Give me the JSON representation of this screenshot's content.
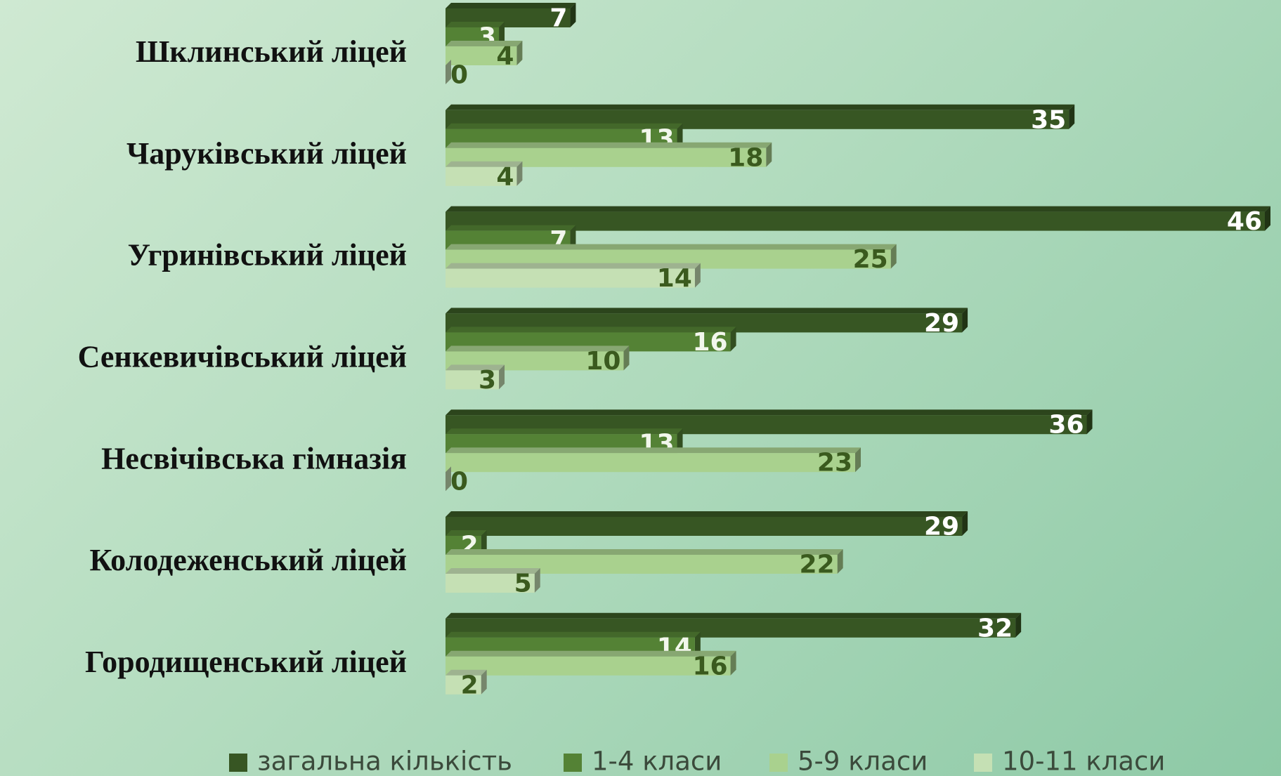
{
  "chart_data": {
    "type": "bar",
    "orientation": "horizontal",
    "categories": [
      "Шклинський ліцей",
      "Чаруківський ліцей",
      "Угринівський ліцей",
      "Сенкевичівський ліцей",
      "Несвічівська гімназія",
      "Колодеженський ліцей",
      "Городищенський ліцей"
    ],
    "series": [
      {
        "name": "загальна кількість",
        "color": "#375623",
        "values": [
          7,
          35,
          46,
          29,
          36,
          29,
          32
        ]
      },
      {
        "name": "1-4 класи",
        "color": "#548235",
        "values": [
          3,
          13,
          7,
          16,
          13,
          2,
          14
        ]
      },
      {
        "name": "5-9 класи",
        "color": "#a9d18e",
        "values": [
          4,
          18,
          25,
          10,
          23,
          22,
          16
        ]
      },
      {
        "name": "10-11 класи",
        "color": "#c5e0b4",
        "values": [
          0,
          4,
          14,
          3,
          0,
          5,
          2
        ]
      }
    ],
    "legend": "bottom"
  }
}
